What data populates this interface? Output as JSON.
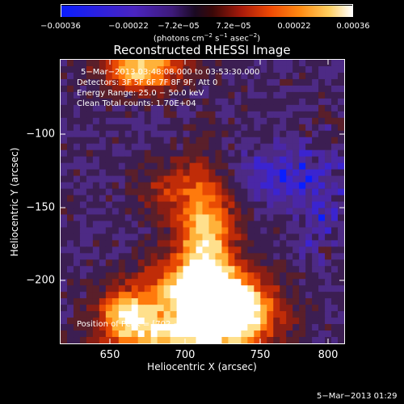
{
  "colorbar": {
    "ticks": [
      "−0.00036",
      "−0.00022",
      "−7.2e−05",
      "7.2e−05",
      "0.00022",
      "0.00036"
    ],
    "units_text": "(photons cm",
    "units_sup1": "−2",
    "units_mid1": " s",
    "units_sup2": "−1",
    "units_mid2": " asec",
    "units_sup3": "−2",
    "units_end": ")"
  },
  "plot": {
    "title": "Reconstructed RHESSI Image",
    "time_range": "5−Mar−2013 03:48:08.000 to 03:53:30.000",
    "detectors": "Detectors: 3F 5F 6F 7F 8F 9F, Att 0",
    "energy_range": "Energy Range: 25.0 − 50.0 keV",
    "clean_info": "Clean     Total counts: 1.70E+04",
    "peak_position": "Position of Peak = [702,−232]",
    "xlabel": "Heliocentric X (arcsec)",
    "ylabel": "Heliocentric Y (arcsec)",
    "xticks": [
      "650",
      "700",
      "750",
      "800"
    ],
    "yticks": [
      "−100",
      "−150",
      "−200"
    ]
  },
  "footer": {
    "stamp": "5−Mar−2013 01:29"
  },
  "colors": {
    "background": "#000000",
    "axes": "#ffffff",
    "cmap": [
      "#0a1eff",
      "#3b24d0",
      "#4a27a6",
      "#4d2a85",
      "#3c1e52",
      "#5a1f2a",
      "#8a1e14",
      "#c02c08",
      "#e84a04",
      "#ff7a0c",
      "#ffb23a",
      "#ffe08c",
      "#ffffff"
    ]
  }
}
